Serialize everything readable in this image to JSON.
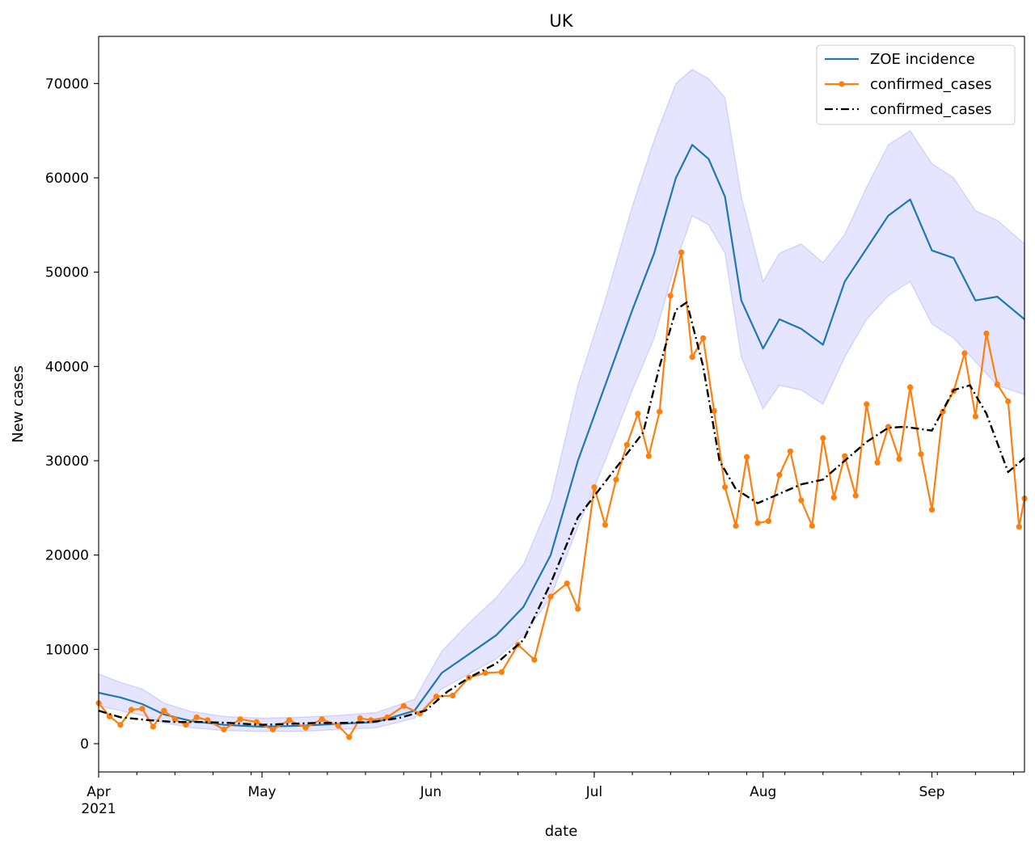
{
  "chart_data": {
    "type": "line",
    "title": "UK",
    "xlabel": "date",
    "ylabel": "New cases",
    "x_range": [
      "2021-04-01",
      "2021-09-18"
    ],
    "ylim": [
      -3000,
      75000
    ],
    "yticks": [
      0,
      10000,
      20000,
      30000,
      40000,
      50000,
      60000,
      70000
    ],
    "xticks": [
      {
        "date": "2021-04-01",
        "label": "Apr",
        "sublabel": "2021"
      },
      {
        "date": "2021-05-01",
        "label": "May",
        "sublabel": ""
      },
      {
        "date": "2021-06-01",
        "label": "Jun",
        "sublabel": ""
      },
      {
        "date": "2021-07-01",
        "label": "Jul",
        "sublabel": ""
      },
      {
        "date": "2021-08-01",
        "label": "Aug",
        "sublabel": ""
      },
      {
        "date": "2021-09-01",
        "label": "Sep",
        "sublabel": ""
      }
    ],
    "grid": false,
    "legend_position": "top-right",
    "series": [
      {
        "name": "ZOE incidence",
        "style": "line",
        "color": "#1f77b4",
        "band_color": "#0000ff",
        "x": [
          "2021-04-01",
          "2021-04-05",
          "2021-04-09",
          "2021-04-13",
          "2021-04-18",
          "2021-04-24",
          "2021-05-01",
          "2021-05-08",
          "2021-05-15",
          "2021-05-22",
          "2021-05-29",
          "2021-06-03",
          "2021-06-08",
          "2021-06-13",
          "2021-06-18",
          "2021-06-23",
          "2021-06-28",
          "2021-07-03",
          "2021-07-08",
          "2021-07-12",
          "2021-07-16",
          "2021-07-19",
          "2021-07-22",
          "2021-07-25",
          "2021-07-28",
          "2021-08-01",
          "2021-08-04",
          "2021-08-08",
          "2021-08-12",
          "2021-08-16",
          "2021-08-20",
          "2021-08-24",
          "2021-08-28",
          "2021-09-01",
          "2021-09-05",
          "2021-09-09",
          "2021-09-13",
          "2021-09-18"
        ],
        "y": [
          5400,
          4900,
          4200,
          3100,
          2400,
          2000,
          1800,
          1900,
          2100,
          2300,
          3500,
          7500,
          9500,
          11500,
          14500,
          20000,
          30000,
          38000,
          46000,
          52000,
          60000,
          63500,
          62000,
          58000,
          47000,
          41900,
          45000,
          44000,
          42300,
          49000,
          52500,
          56000,
          57700,
          52300,
          51500,
          47000,
          47400,
          45000
        ],
        "upper": [
          7400,
          6500,
          5800,
          4300,
          3400,
          2900,
          2700,
          2800,
          3000,
          3300,
          4700,
          9800,
          12800,
          15500,
          19000,
          25800,
          38000,
          47000,
          57000,
          64000,
          70000,
          71500,
          70500,
          68500,
          58000,
          49000,
          52000,
          53000,
          51000,
          54000,
          59000,
          63500,
          65000,
          61500,
          60000,
          56500,
          55500,
          53000
        ],
        "lower": [
          4000,
          3500,
          3000,
          2200,
          1700,
          1400,
          1300,
          1300,
          1500,
          1700,
          2700,
          5800,
          7400,
          9000,
          11500,
          15500,
          23000,
          30000,
          37500,
          43000,
          51000,
          56000,
          55000,
          52000,
          41000,
          35500,
          38000,
          37500,
          36000,
          41000,
          45000,
          47500,
          49000,
          44500,
          43000,
          40500,
          38000,
          37000
        ]
      },
      {
        "name": "confirmed_cases",
        "style": "line-markers",
        "color": "#ff7f0e",
        "x": [
          "2021-04-01",
          "2021-04-03",
          "2021-04-05",
          "2021-04-07",
          "2021-04-09",
          "2021-04-11",
          "2021-04-13",
          "2021-04-15",
          "2021-04-17",
          "2021-04-19",
          "2021-04-21",
          "2021-04-24",
          "2021-04-27",
          "2021-04-30",
          "2021-05-03",
          "2021-05-06",
          "2021-05-09",
          "2021-05-12",
          "2021-05-15",
          "2021-05-17",
          "2021-05-19",
          "2021-05-21",
          "2021-05-24",
          "2021-05-27",
          "2021-05-30",
          "2021-06-02",
          "2021-06-05",
          "2021-06-08",
          "2021-06-11",
          "2021-06-14",
          "2021-06-17",
          "2021-06-20",
          "2021-06-23",
          "2021-06-26",
          "2021-06-28",
          "2021-07-01",
          "2021-07-03",
          "2021-07-05",
          "2021-07-07",
          "2021-07-09",
          "2021-07-11",
          "2021-07-13",
          "2021-07-15",
          "2021-07-17",
          "2021-07-19",
          "2021-07-21",
          "2021-07-23",
          "2021-07-25",
          "2021-07-27",
          "2021-07-29",
          "2021-07-31",
          "2021-08-02",
          "2021-08-04",
          "2021-08-06",
          "2021-08-08",
          "2021-08-10",
          "2021-08-12",
          "2021-08-14",
          "2021-08-16",
          "2021-08-18",
          "2021-08-20",
          "2021-08-22",
          "2021-08-24",
          "2021-08-26",
          "2021-08-28",
          "2021-08-30",
          "2021-09-01",
          "2021-09-03",
          "2021-09-05",
          "2021-09-07",
          "2021-09-09",
          "2021-09-11",
          "2021-09-13",
          "2021-09-15",
          "2021-09-17",
          "2021-09-18"
        ],
        "y": [
          4300,
          2900,
          2000,
          3600,
          3700,
          1800,
          3500,
          2600,
          2000,
          2800,
          2500,
          1500,
          2600,
          2300,
          1500,
          2500,
          1700,
          2600,
          1900,
          700,
          2700,
          2500,
          2800,
          4000,
          3200,
          5000,
          5100,
          7000,
          7500,
          7600,
          10500,
          8900,
          15600,
          17000,
          14300,
          27200,
          23200,
          28000,
          31700,
          35000,
          30500,
          35200,
          47500,
          52100,
          41000,
          43000,
          35300,
          27200,
          23100,
          30400,
          23400,
          23600,
          28500,
          31000,
          25800,
          23100,
          32400,
          26100,
          30500,
          26300,
          36000,
          29800,
          33600,
          30200,
          37800,
          30700,
          24800,
          35200,
          37400,
          41400,
          34700,
          43500,
          38100,
          36300,
          23000,
          26000
        ]
      },
      {
        "name": "confirmed_cases",
        "style": "dash-dot",
        "color": "#000000",
        "x": [
          "2021-04-01",
          "2021-04-05",
          "2021-04-10",
          "2021-04-15",
          "2021-04-20",
          "2021-04-25",
          "2021-05-01",
          "2021-05-06",
          "2021-05-11",
          "2021-05-16",
          "2021-05-21",
          "2021-05-26",
          "2021-05-31",
          "2021-06-04",
          "2021-06-08",
          "2021-06-13",
          "2021-06-18",
          "2021-06-23",
          "2021-06-28",
          "2021-07-02",
          "2021-07-06",
          "2021-07-10",
          "2021-07-13",
          "2021-07-16",
          "2021-07-18",
          "2021-07-21",
          "2021-07-24",
          "2021-07-27",
          "2021-07-31",
          "2021-08-04",
          "2021-08-08",
          "2021-08-12",
          "2021-08-16",
          "2021-08-20",
          "2021-08-24",
          "2021-08-27",
          "2021-09-01",
          "2021-09-05",
          "2021-09-08",
          "2021-09-11",
          "2021-09-15",
          "2021-09-18"
        ],
        "y": [
          3500,
          2800,
          2500,
          2300,
          2300,
          2200,
          2000,
          2100,
          2200,
          2200,
          2300,
          2700,
          3500,
          5500,
          7000,
          8500,
          11000,
          17000,
          24000,
          27000,
          30000,
          33000,
          40000,
          46000,
          46800,
          40000,
          30000,
          27000,
          25500,
          26500,
          27500,
          28000,
          30000,
          32000,
          33500,
          33600,
          33200,
          37500,
          38000,
          35000,
          28800,
          30300
        ]
      }
    ]
  }
}
